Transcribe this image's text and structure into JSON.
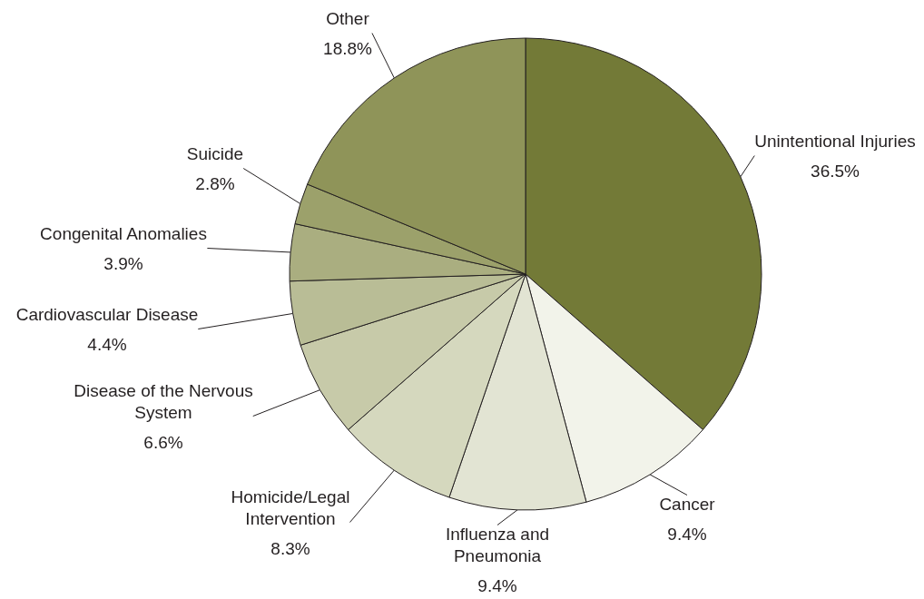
{
  "chart_data": {
    "type": "pie",
    "categories": [
      "Unintentional Injuries",
      "Cancer",
      "Influenza and Pneumonia",
      "Homicide/Legal Intervention",
      "Disease of the Nervous System",
      "Cardiovascular Disease",
      "Congenital Anomalies",
      "Suicide",
      "Other"
    ],
    "values": [
      36.5,
      9.4,
      9.4,
      8.3,
      6.6,
      4.4,
      3.9,
      2.8,
      18.8
    ],
    "colors": [
      "#737a37",
      "#f2f3ea",
      "#e2e4d3",
      "#d5d8be",
      "#c7caa9",
      "#b9bd96",
      "#aaae80",
      "#9ca16b",
      "#8f9459"
    ],
    "value_labels": [
      "36.5%",
      "9.4%",
      "9.4%",
      "8.3%",
      "6.6%",
      "4.4%",
      "3.9%",
      "2.8%",
      "18.8%"
    ]
  }
}
